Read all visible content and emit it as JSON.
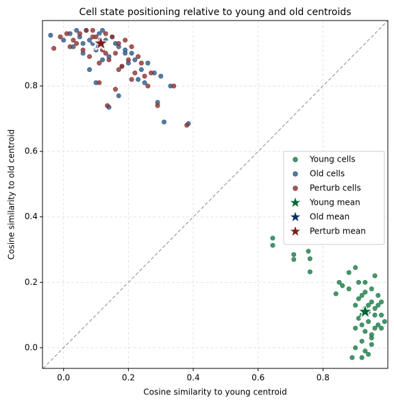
{
  "chart_data": {
    "type": "scatter",
    "title": "Cell state positioning relative to young and old centroids",
    "x_label": "Cosine similarity to young centroid",
    "y_label": "Cosine similarity to old centroid",
    "xlim": [
      -0.065,
      1.0
    ],
    "ylim": [
      -0.063,
      1.0
    ],
    "xticks": [
      {
        "value": 0,
        "label": "0.0"
      },
      {
        "value": 0.2,
        "label": "0.2"
      },
      {
        "value": 0.4,
        "label": "0.4"
      },
      {
        "value": 0.6,
        "label": "0.6"
      },
      {
        "value": 0.8,
        "label": "0.8"
      }
    ],
    "yticks": [
      {
        "value": 0,
        "label": "0.0"
      },
      {
        "value": 0.2,
        "label": "0.2"
      },
      {
        "value": 0.4,
        "label": "0.4"
      },
      {
        "value": 0.6,
        "label": "0.6"
      },
      {
        "value": 0.8,
        "label": "0.8"
      }
    ],
    "grid": true,
    "diagonal": true,
    "legend": "center right",
    "series": [
      {
        "name": "Young cells",
        "color": "#1b7a47",
        "marker": "circle",
        "x": [
          0.645,
          0.645,
          0.71,
          0.71,
          0.755,
          0.76,
          0.76,
          0.84,
          0.85,
          0.88,
          0.9,
          0.91,
          0.96,
          0.92,
          0.95,
          0.97,
          0.98,
          0.93,
          0.9,
          0.89,
          0.92,
          0.94,
          0.95,
          0.91,
          0.93,
          0.94,
          0.96,
          0.97,
          0.92,
          0.9,
          0.88,
          0.86,
          0.99,
          0.98,
          0.95,
          0.93,
          0.94,
          0.96,
          0.92,
          0.95,
          0.97,
          0.91,
          0.93,
          0.94,
          0.96,
          0.98,
          0.9,
          0.92,
          0.95,
          0.93
        ],
        "y": [
          0.335,
          0.313,
          0.285,
          0.27,
          0.295,
          0.272,
          0.232,
          0.165,
          0.2,
          0.23,
          0.245,
          0.2,
          0.22,
          0.16,
          0.14,
          0.13,
          0.1,
          0.05,
          0.0,
          -0.03,
          -0.03,
          -0.02,
          0.03,
          0.09,
          0.12,
          0.08,
          0.06,
          0.16,
          0.02,
          0.13,
          0.18,
          0.19,
          0.08,
          0.14,
          0.18,
          0.2,
          0.11,
          0.1,
          0.07,
          0.04,
          0.07,
          0.15,
          0.17,
          0.13,
          0.12,
          0.06,
          0.06,
          0.1,
          0.01,
          -0.01
        ]
      },
      {
        "name": "Old cells",
        "color": "#2c5a88",
        "marker": "circle",
        "x": [
          0.14,
          0.385,
          0.31,
          0.33,
          0.29,
          0.3,
          0.25,
          0.17,
          0.1,
          0.08,
          -0.04,
          0.0,
          0.02,
          0.05,
          0.07,
          0.09,
          0.11,
          0.13,
          0.15,
          0.17,
          0.19,
          0.21,
          0.03,
          0.06,
          0.08,
          0.12,
          0.14,
          0.18,
          0.22,
          0.24,
          0.04,
          0.1,
          0.16,
          0.2,
          0.26,
          0.12,
          0.06,
          0.28,
          0.23,
          0.19
        ],
        "y": [
          0.735,
          0.685,
          0.69,
          0.8,
          0.75,
          0.83,
          0.81,
          0.77,
          0.81,
          0.85,
          0.955,
          0.94,
          0.96,
          0.95,
          0.97,
          0.93,
          0.96,
          0.94,
          0.95,
          0.92,
          0.91,
          0.9,
          0.92,
          0.9,
          0.94,
          0.97,
          0.89,
          0.86,
          0.88,
          0.85,
          0.97,
          0.91,
          0.93,
          0.87,
          0.87,
          0.88,
          0.93,
          0.84,
          0.82,
          0.9
        ]
      },
      {
        "name": "Perturb cells",
        "color": "#8c3232",
        "marker": "circle",
        "x": [
          0.135,
          0.38,
          0.34,
          0.29,
          0.26,
          0.21,
          0.16,
          0.11,
          -0.03,
          -0.01,
          0.01,
          0.03,
          0.05,
          0.07,
          0.09,
          0.11,
          0.13,
          0.15,
          0.17,
          0.19,
          0.21,
          0.23,
          0.04,
          0.06,
          0.08,
          0.1,
          0.12,
          0.14,
          0.16,
          0.18,
          0.2,
          0.24,
          0.27,
          0.02,
          0.09,
          0.13,
          0.17,
          0.22,
          0.25,
          0.11
        ],
        "y": [
          0.74,
          0.68,
          0.8,
          0.74,
          0.8,
          0.82,
          0.79,
          0.81,
          0.915,
          0.95,
          0.96,
          0.94,
          0.96,
          0.97,
          0.95,
          0.93,
          0.96,
          0.95,
          0.93,
          0.94,
          0.92,
          0.89,
          0.93,
          0.91,
          0.89,
          0.95,
          0.91,
          0.88,
          0.9,
          0.86,
          0.88,
          0.87,
          0.84,
          0.92,
          0.97,
          0.9,
          0.85,
          0.84,
          0.83,
          0.87
        ]
      },
      {
        "name": "Young mean",
        "color": "#006837",
        "marker": "star",
        "x": [
          0.93
        ],
        "y": [
          0.11
        ]
      },
      {
        "name": "Old mean",
        "color": "#08306b",
        "marker": "star",
        "x": [
          0.11
        ],
        "y": [
          0.93
        ]
      },
      {
        "name": "Perturb mean",
        "color": "#7f1d1d",
        "marker": "star",
        "x": [
          0.115
        ],
        "y": [
          0.93
        ]
      }
    ]
  }
}
